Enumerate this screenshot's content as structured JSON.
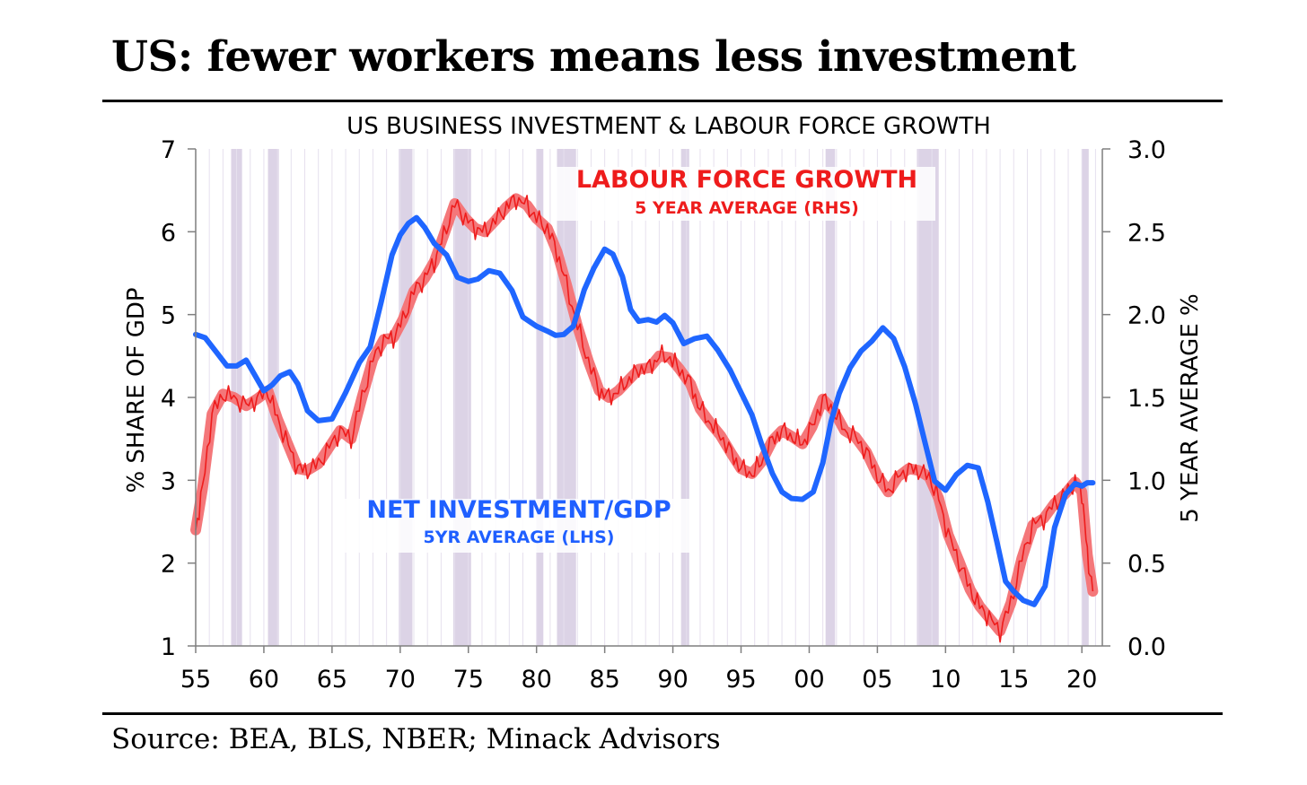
{
  "headline": "US: fewer workers means less investment",
  "source": "Source: BEA, BLS, NBER; Minack Advisors",
  "chart_data": {
    "type": "line",
    "title": "US BUSINESS INVESTMENT & LABOUR FORCE GROWTH",
    "ylabel_left": "% SHARE OF GDP",
    "ylabel_right": "5 YEAR AVERAGE %",
    "xlim": [
      1955,
      2021.5
    ],
    "ylim_left": [
      1,
      7
    ],
    "ylim_right": [
      0.0,
      3.0
    ],
    "x_ticks": [
      {
        "value": 1955,
        "label": "55"
      },
      {
        "value": 1960,
        "label": "60"
      },
      {
        "value": 1965,
        "label": "65"
      },
      {
        "value": 1970,
        "label": "70"
      },
      {
        "value": 1975,
        "label": "75"
      },
      {
        "value": 1980,
        "label": "80"
      },
      {
        "value": 1985,
        "label": "85"
      },
      {
        "value": 1990,
        "label": "90"
      },
      {
        "value": 1995,
        "label": "95"
      },
      {
        "value": 2000,
        "label": "00"
      },
      {
        "value": 2005,
        "label": "05"
      },
      {
        "value": 2010,
        "label": "10"
      },
      {
        "value": 2015,
        "label": "15"
      },
      {
        "value": 2020,
        "label": "20"
      }
    ],
    "y_ticks_left": [
      "1",
      "2",
      "3",
      "4",
      "5",
      "6",
      "7"
    ],
    "y_ticks_right": [
      "0.0",
      "0.5",
      "1.0",
      "1.5",
      "2.0",
      "2.5",
      "3.0"
    ],
    "grid": {
      "vertical": true,
      "horizontal": false
    },
    "recessions": [
      [
        1957.6,
        1958.4
      ],
      [
        1960.3,
        1961.1
      ],
      [
        1969.9,
        1970.9
      ],
      [
        1973.9,
        1975.2
      ],
      [
        1980.0,
        1980.5
      ],
      [
        1981.5,
        1982.9
      ],
      [
        1990.6,
        1991.2
      ],
      [
        2001.2,
        2001.9
      ],
      [
        2007.9,
        2009.5
      ],
      [
        2020.0,
        2020.5
      ]
    ],
    "annotations": [
      {
        "text": "LABOUR FORCE GROWTH",
        "color": "#ee1c1c"
      },
      {
        "text": "5 YEAR AVERAGE (RHS)",
        "color": "#ee1c1c"
      },
      {
        "text": "NET INVESTMENT/GDP",
        "color": "#1f5fff"
      },
      {
        "text": "5YR AVERAGE (LHS)",
        "color": "#1f5fff"
      }
    ],
    "series": [
      {
        "name": "NET INVESTMENT/GDP",
        "axis": "left",
        "color": "#1f66ff",
        "x": [
          1955.0,
          1955.7,
          1956.5,
          1957.3,
          1958.0,
          1958.7,
          1959.3,
          1960.0,
          1960.6,
          1961.2,
          1961.9,
          1962.5,
          1963.2,
          1964.0,
          1965.0,
          1966.0,
          1967.0,
          1967.8,
          1968.6,
          1969.4,
          1970.0,
          1970.6,
          1971.2,
          1971.8,
          1972.5,
          1973.4,
          1974.2,
          1975.0,
          1975.7,
          1976.5,
          1977.3,
          1978.2,
          1979.0,
          1980.0,
          1980.8,
          1981.4,
          1982.0,
          1982.7,
          1983.5,
          1984.2,
          1985.0,
          1985.6,
          1986.3,
          1986.9,
          1987.5,
          1988.2,
          1988.8,
          1989.4,
          1990.0,
          1990.8,
          1991.6,
          1992.5,
          1993.3,
          1994.2,
          1995.0,
          1995.8,
          1996.5,
          1997.3,
          1998.0,
          1998.7,
          1999.5,
          2000.3,
          2001.0,
          2001.6,
          2002.2,
          2003.0,
          2003.8,
          2004.6,
          2005.4,
          2006.2,
          2007.0,
          2007.8,
          2008.5,
          2009.2,
          2010.0,
          2010.8,
          2011.6,
          2012.4,
          2013.1,
          2013.8,
          2014.4,
          2015.0,
          2015.7,
          2016.5,
          2017.3,
          2018.0,
          2018.8,
          2019.5,
          2020.0,
          2020.4,
          2020.8
        ],
        "y": [
          4.76,
          4.72,
          4.55,
          4.38,
          4.38,
          4.45,
          4.28,
          4.08,
          4.15,
          4.26,
          4.31,
          4.16,
          3.84,
          3.72,
          3.74,
          4.06,
          4.42,
          4.61,
          5.15,
          5.72,
          5.96,
          6.1,
          6.17,
          6.05,
          5.86,
          5.72,
          5.45,
          5.4,
          5.43,
          5.53,
          5.5,
          5.29,
          4.97,
          4.86,
          4.8,
          4.75,
          4.76,
          4.86,
          5.3,
          5.56,
          5.79,
          5.73,
          5.46,
          5.06,
          4.92,
          4.94,
          4.91,
          4.99,
          4.9,
          4.65,
          4.71,
          4.74,
          4.57,
          4.33,
          4.06,
          3.79,
          3.44,
          3.08,
          2.86,
          2.78,
          2.77,
          2.86,
          3.21,
          3.71,
          4.05,
          4.36,
          4.56,
          4.68,
          4.84,
          4.71,
          4.37,
          3.92,
          3.45,
          2.99,
          2.88,
          3.07,
          3.18,
          3.15,
          2.74,
          2.23,
          1.78,
          1.66,
          1.55,
          1.5,
          1.72,
          2.43,
          2.83,
          2.96,
          2.93,
          2.97,
          2.97
        ]
      },
      {
        "name": "LABOUR FORCE GROWTH",
        "axis": "right",
        "color": "#ee1c1c",
        "x": [
          1955.0,
          1955.5,
          1956.2,
          1957.0,
          1957.8,
          1958.7,
          1959.5,
          1960.3,
          1961.0,
          1961.8,
          1962.5,
          1963.2,
          1964.0,
          1964.8,
          1965.6,
          1966.4,
          1967.2,
          1968.0,
          1968.8,
          1969.5,
          1970.2,
          1971.0,
          1971.8,
          1972.5,
          1973.2,
          1974.0,
          1974.8,
          1975.5,
          1976.2,
          1977.0,
          1977.8,
          1978.5,
          1979.3,
          1980.0,
          1980.8,
          1981.5,
          1982.2,
          1983.0,
          1983.8,
          1984.6,
          1985.3,
          1986.0,
          1986.8,
          1987.5,
          1988.3,
          1989.0,
          1989.8,
          1990.5,
          1991.3,
          1992.0,
          1992.8,
          1993.5,
          1994.3,
          1995.0,
          1995.8,
          1996.5,
          1997.3,
          1998.0,
          1998.8,
          1999.5,
          2000.2,
          2001.0,
          2001.8,
          2002.6,
          2003.4,
          2004.2,
          2005.0,
          2005.8,
          2006.5,
          2007.3,
          2008.0,
          2008.8,
          2009.5,
          2010.2,
          2011.0,
          2011.8,
          2012.5,
          2013.2,
          2014.0,
          2014.8,
          2015.6,
          2016.4,
          2017.2,
          2018.0,
          2018.8,
          2019.5,
          2020.0,
          2020.4,
          2020.8
        ],
        "y": [
          0.7,
          0.95,
          1.4,
          1.52,
          1.5,
          1.45,
          1.49,
          1.54,
          1.37,
          1.21,
          1.07,
          1.06,
          1.1,
          1.2,
          1.3,
          1.25,
          1.5,
          1.73,
          1.85,
          1.86,
          1.97,
          2.14,
          2.22,
          2.32,
          2.48,
          2.67,
          2.58,
          2.52,
          2.5,
          2.57,
          2.65,
          2.7,
          2.66,
          2.58,
          2.52,
          2.38,
          2.18,
          1.93,
          1.72,
          1.54,
          1.5,
          1.54,
          1.61,
          1.67,
          1.68,
          1.75,
          1.74,
          1.67,
          1.58,
          1.43,
          1.34,
          1.27,
          1.16,
          1.07,
          1.04,
          1.11,
          1.24,
          1.3,
          1.26,
          1.22,
          1.32,
          1.49,
          1.42,
          1.3,
          1.26,
          1.17,
          1.03,
          0.93,
          1.02,
          1.07,
          1.06,
          1.02,
          0.89,
          0.67,
          0.51,
          0.34,
          0.24,
          0.17,
          0.09,
          0.26,
          0.53,
          0.73,
          0.77,
          0.86,
          0.92,
          0.99,
          0.93,
          0.55,
          0.33
        ]
      }
    ]
  }
}
